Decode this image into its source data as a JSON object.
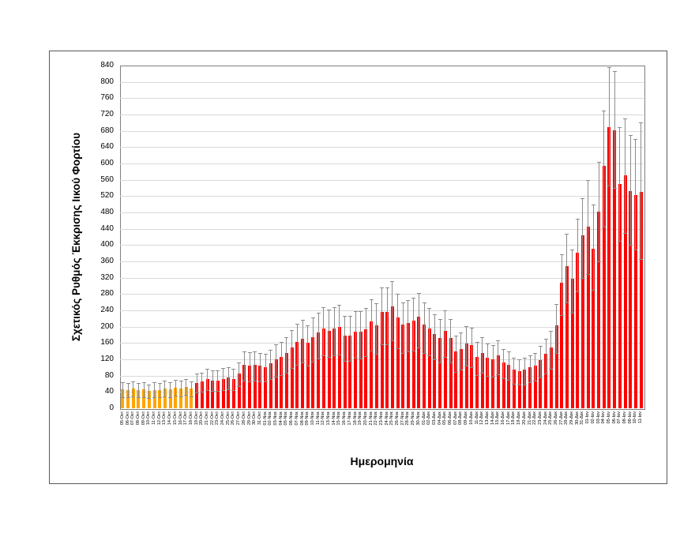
{
  "page": {
    "background": "#ffffff"
  },
  "chart_data": {
    "type": "bar",
    "title": "",
    "xlabel": "Ημερομηνία",
    "ylabel": "Σχετικός Ρυθμός Έκκρισης Ιικού Φορτίου",
    "ylim": [
      0,
      840
    ],
    "ytick_step": 40,
    "grid": true,
    "legend": "none",
    "orange_bar_count": 14,
    "colors": {
      "orange_bar": "#FFA500",
      "red_bar": "#FF0000",
      "error_bar": "#8c8c8c",
      "gridline": "#d9d9d9",
      "plot_border": "#7f7f7f",
      "frame_border": "#595959"
    },
    "categories": [
      "05-Οκτ",
      "06-Οκτ",
      "07-Οκτ",
      "08-Οκτ",
      "09-Οκτ",
      "10-Οκτ",
      "11-Οκτ",
      "12-Οκτ",
      "13-Οκτ",
      "14-Οκτ",
      "15-Οκτ",
      "16-Οκτ",
      "17-Οκτ",
      "18-Οκτ",
      "19-Οκτ",
      "20-Οκτ",
      "21-Οκτ",
      "22-Οκτ",
      "23-Οκτ",
      "24-Οκτ",
      "25-Οκτ",
      "26-Οκτ",
      "27-Οκτ",
      "28-Οκτ",
      "29-Οκτ",
      "30-Οκτ",
      "31-Οκτ",
      "01-Νοε",
      "02-Νοε",
      "03-Νοε",
      "04-Νοε",
      "05-Νοε",
      "06-Νοε",
      "07-Νοε",
      "08-Νοε",
      "09-Νοε",
      "10-Νοε",
      "11-Νοε",
      "12-Νοε",
      "13-Νοε",
      "14-Νοε",
      "15-Νοε",
      "16-Νοε",
      "17-Νοε",
      "18-Νοε",
      "19-Νοε",
      "20-Νοε",
      "21-Νοε",
      "22-Νοε",
      "23-Νοε",
      "24-Νοε",
      "25-Νοε",
      "26-Νοε",
      "27-Νοε",
      "28-Νοε",
      "29-Νοε",
      "30-Νοε",
      "01-Δεκ",
      "02-Δεκ",
      "03-Δεκ",
      "04-Δεκ",
      "05-Δεκ",
      "06-Δεκ",
      "07-Δεκ",
      "08-Δεκ",
      "09-Δεκ",
      "10-Δεκ",
      "11-Δεκ",
      "12-Δεκ",
      "13-Δεκ",
      "14-Δεκ",
      "15-Δεκ",
      "16-Δεκ",
      "17-Δεκ",
      "18-Δεκ",
      "19-Δεκ",
      "20-Δεκ",
      "21-Δεκ",
      "22-Δεκ",
      "23-Δεκ",
      "24-Δεκ",
      "25-Δεκ",
      "26-Δεκ",
      "27-Δεκ",
      "28-Δεκ",
      "29-Δεκ",
      "30-Δεκ",
      "31-Δεκ",
      "01-Ιαν",
      "02-Ιαν",
      "03-Ιαν",
      "04-Ιαν",
      "05-Ιαν",
      "06-Ιαν",
      "07-Ιαν",
      "08-Ιαν",
      "09-Ιαν",
      "10-Ιαν",
      "11-Ιαν"
    ],
    "values": [
      46,
      44,
      48,
      44,
      46,
      42,
      45,
      44,
      48,
      46,
      50,
      48,
      52,
      48,
      62,
      65,
      72,
      68,
      68,
      72,
      75,
      72,
      85,
      106,
      104,
      106,
      104,
      101,
      110,
      120,
      126,
      135,
      150,
      163,
      170,
      160,
      175,
      185,
      196,
      190,
      196,
      200,
      178,
      178,
      188,
      188,
      194,
      213,
      204,
      236,
      236,
      249,
      223,
      205,
      210,
      215,
      225,
      205,
      195,
      182,
      172,
      190,
      172,
      139,
      146,
      159,
      155,
      126,
      136,
      123,
      120,
      130,
      113,
      107,
      94,
      91,
      94,
      100,
      105,
      118,
      133,
      149,
      204,
      307,
      349,
      317,
      381,
      423,
      446,
      391,
      481,
      594,
      690,
      681,
      549,
      571,
      533,
      522,
      530
    ],
    "error_high": [
      64,
      62,
      66,
      61,
      64,
      59,
      63,
      62,
      67,
      64,
      69,
      67,
      71,
      66,
      85,
      88,
      97,
      92,
      93,
      98,
      101,
      97,
      113,
      139,
      137,
      140,
      136,
      133,
      144,
      156,
      163,
      174,
      192,
      207,
      216,
      204,
      222,
      234,
      247,
      241,
      248,
      253,
      226,
      227,
      238,
      239,
      246,
      268,
      258,
      296,
      297,
      312,
      281,
      259,
      265,
      271,
      283,
      259,
      246,
      230,
      218,
      240,
      219,
      178,
      186,
      202,
      197,
      162,
      174,
      158,
      154,
      167,
      146,
      139,
      123,
      120,
      124,
      130,
      136,
      152,
      170,
      189,
      255,
      377,
      427,
      390,
      465,
      515,
      560,
      500,
      603,
      730,
      836,
      826,
      690,
      710,
      670,
      660,
      700
    ],
    "error_low": [
      28,
      27,
      30,
      27,
      28,
      26,
      28,
      27,
      30,
      28,
      31,
      30,
      32,
      30,
      39,
      41,
      45,
      43,
      42,
      45,
      47,
      45,
      54,
      68,
      66,
      67,
      66,
      65,
      71,
      77,
      82,
      88,
      98,
      107,
      112,
      104,
      115,
      122,
      129,
      125,
      129,
      131,
      117,
      116,
      123,
      122,
      127,
      141,
      134,
      157,
      156,
      166,
      148,
      135,
      139,
      142,
      149,
      135,
      129,
      120,
      113,
      125,
      112,
      90,
      95,
      104,
      101,
      82,
      88,
      80,
      78,
      84,
      73,
      69,
      60,
      58,
      59,
      64,
      67,
      76,
      86,
      97,
      135,
      228,
      260,
      235,
      287,
      320,
      330,
      290,
      360,
      445,
      545,
      540,
      410,
      430,
      400,
      390,
      365
    ]
  }
}
